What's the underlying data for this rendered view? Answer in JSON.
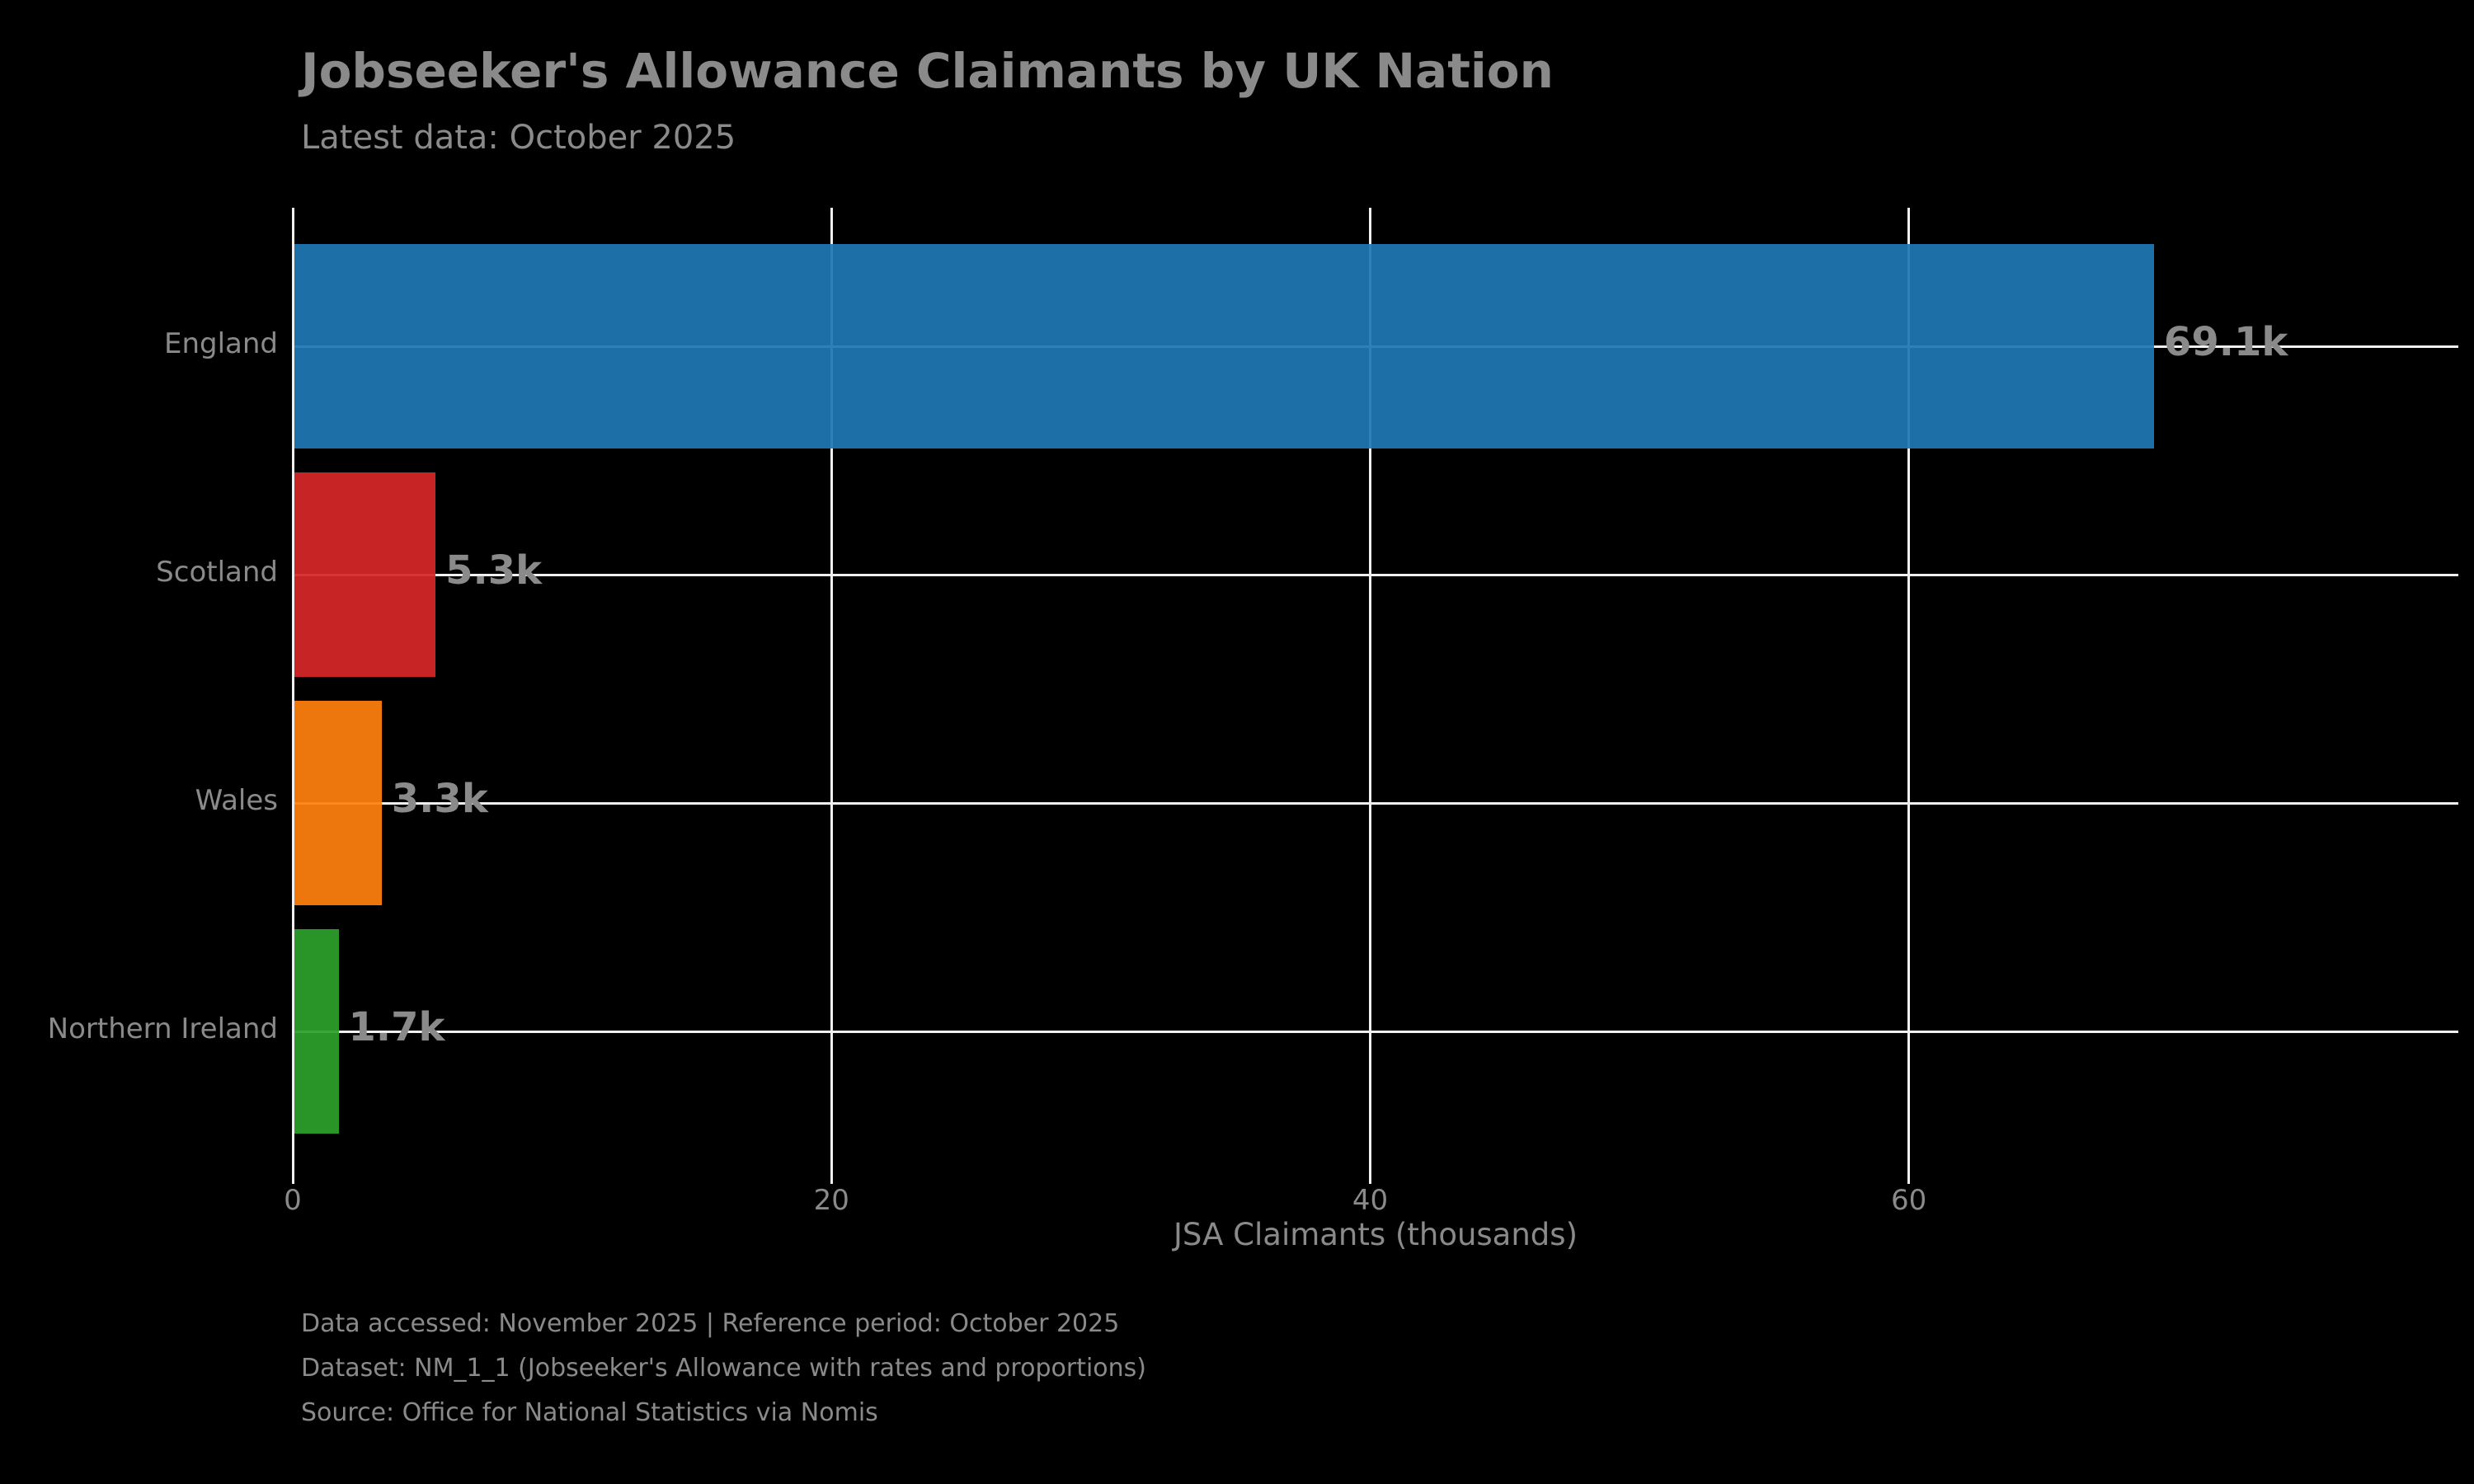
{
  "chart": {
    "title": "Jobseeker's Allowance Claimants by UK Nation",
    "subtitle": "Latest data: October 2025",
    "footer_line1": "Data accessed: November 2025 | Reference period: October 2025",
    "footer_line2": "Dataset: NM_1_1 (Jobseeker's Allowance with rates and proportions)",
    "footer_line3": "Source: Office for National Statistics via Nomis"
  },
  "chart_data": {
    "type": "bar",
    "orientation": "horizontal",
    "title": "Jobseeker's Allowance Claimants by UK Nation",
    "subtitle": "Latest data: October 2025",
    "categories": [
      "England",
      "Scotland",
      "Wales",
      "Northern Ireland"
    ],
    "values": [
      69.1,
      5.3,
      3.3,
      1.7
    ],
    "value_labels": [
      "69.1k",
      "5.3k",
      "3.3k",
      "1.7k"
    ],
    "bar_colors": [
      "#1f77b4",
      "#d62728",
      "#ff7f0e",
      "#2ca02c"
    ],
    "xlabel": "JSA Claimants (thousands)",
    "ylabel": "",
    "xticks": [
      0,
      20,
      40,
      60
    ],
    "xlim": [
      0,
      80.4
    ],
    "grid": true,
    "legend": false,
    "background_color": "#000000",
    "text_color": "#8a8a8a",
    "gridline_color": "#f0f0f0"
  }
}
